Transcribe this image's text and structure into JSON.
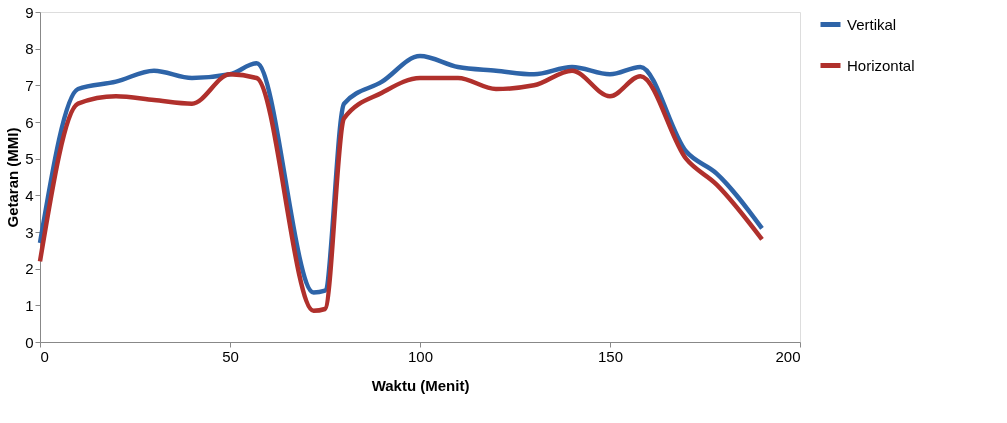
{
  "chart_data": {
    "type": "line",
    "xlabel": "Waktu (Menit)",
    "ylabel": "Getaran (MMI)",
    "x": [
      0,
      10,
      20,
      30,
      40,
      50,
      57,
      72,
      75,
      80,
      90,
      100,
      110,
      120,
      130,
      140,
      150,
      158,
      170,
      178,
      190
    ],
    "series": [
      {
        "name": "Vertikal",
        "color": "#2e64a8",
        "values": [
          2.7,
          6.9,
          7.1,
          7.4,
          7.2,
          7.3,
          7.6,
          1.35,
          1.4,
          6.5,
          7.1,
          7.8,
          7.5,
          7.4,
          7.3,
          7.5,
          7.3,
          7.5,
          5.2,
          4.6,
          3.1
        ]
      },
      {
        "name": "Horizontal",
        "color": "#b0302c",
        "values": [
          2.2,
          6.5,
          6.7,
          6.6,
          6.5,
          7.3,
          7.2,
          0.85,
          0.9,
          6.1,
          6.8,
          7.2,
          7.2,
          6.9,
          7.0,
          7.4,
          6.7,
          7.25,
          5.0,
          4.3,
          2.8
        ]
      }
    ],
    "xlim": [
      0,
      200
    ],
    "xticks": [
      0,
      50,
      100,
      150,
      200
    ],
    "ylim": [
      0,
      9
    ],
    "yticks": [
      0,
      1,
      2,
      3,
      4,
      5,
      6,
      7,
      8,
      9
    ],
    "grid": false,
    "legend": "top right",
    "marker": "none",
    "line_style": "solid"
  }
}
